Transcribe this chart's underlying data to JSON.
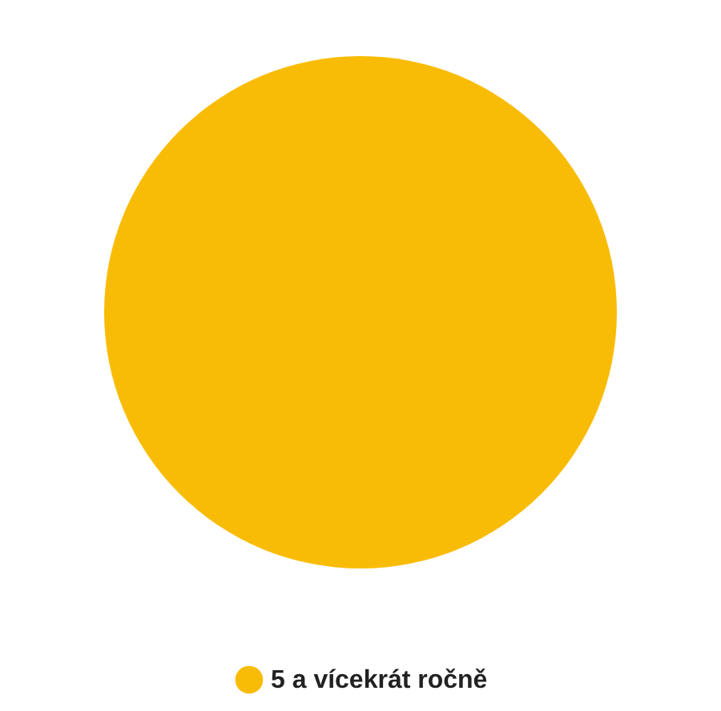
{
  "chart_data": {
    "type": "pie",
    "categories": [
      "5 a vícekrát ročně"
    ],
    "values": [
      100
    ],
    "colors": [
      "#f9bc06"
    ],
    "legend": "bottom"
  }
}
